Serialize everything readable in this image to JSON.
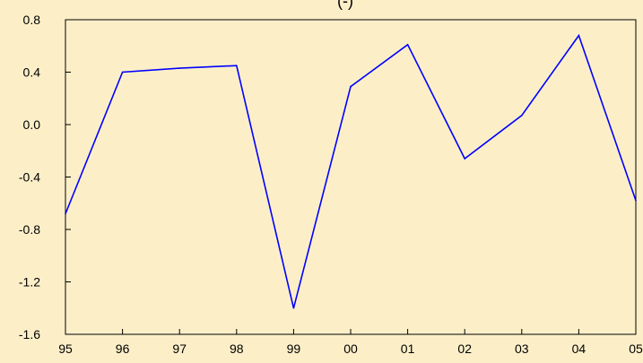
{
  "chart_data": {
    "type": "line",
    "title": "(-)",
    "x": [
      "95",
      "96",
      "97",
      "98",
      "99",
      "00",
      "01",
      "02",
      "03",
      "04",
      "05"
    ],
    "series": [
      {
        "values": [
          -0.68,
          0.4,
          0.43,
          0.45,
          -1.4,
          0.29,
          0.61,
          -0.26,
          0.07,
          0.68,
          -0.58
        ]
      }
    ],
    "yticks": [
      "0.8",
      "0.4",
      "0.0",
      "-0.4",
      "-0.8",
      "-1.2",
      "-1.6"
    ],
    "ylim": [
      -1.6,
      0.8
    ],
    "grid": false,
    "line_color": "#0000ff"
  },
  "colors": {
    "background": "#fcefc8",
    "axis": "#000000",
    "series": "#0000ff"
  }
}
